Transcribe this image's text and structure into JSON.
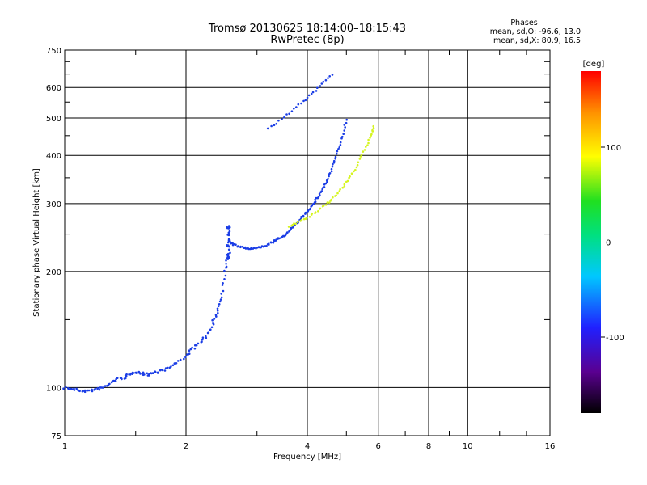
{
  "chart_data": {
    "type": "scatter",
    "title": "Tromsø 20130625 18:14:00–18:15:43",
    "subtitle": "RwPretec (8p)",
    "xlabel": "Frequency [MHz]",
    "ylabel": "Stationary phase Virtual Height [km]",
    "x_scale": "log",
    "y_scale": "log",
    "xlim": [
      1,
      16
    ],
    "ylim": [
      75,
      750
    ],
    "x_ticks": [
      1,
      2,
      4,
      6,
      8,
      10,
      16
    ],
    "y_ticks": [
      75,
      100,
      200,
      300,
      400,
      500,
      600,
      750
    ],
    "grid": true,
    "phase_info": {
      "title": "Phases",
      "line_o": "mean, sd,O: -96.6, 13.0",
      "line_x": "mean, sd,X:  80.9, 16.5"
    },
    "colorbar": {
      "label": "[deg]",
      "range": [
        -180,
        180
      ],
      "ticks": [
        "100",
        "0",
        "-100"
      ],
      "tick_values": [
        100,
        0,
        -100
      ]
    },
    "series": [
      {
        "mode": "O",
        "mean_phase": -96.6,
        "color": "#1a3de6",
        "trace_low": [
          [
            1.0,
            100
          ],
          [
            1.05,
            99
          ],
          [
            1.1,
            98
          ],
          [
            1.15,
            98
          ],
          [
            1.2,
            99
          ],
          [
            1.25,
            100
          ],
          [
            1.3,
            103
          ],
          [
            1.35,
            105
          ],
          [
            1.4,
            106
          ],
          [
            1.45,
            108
          ],
          [
            1.5,
            110
          ],
          [
            1.55,
            109
          ],
          [
            1.6,
            108
          ],
          [
            1.65,
            109
          ],
          [
            1.7,
            110
          ],
          [
            1.8,
            112
          ],
          [
            1.9,
            116
          ],
          [
            2.0,
            121
          ],
          [
            2.1,
            127
          ],
          [
            2.2,
            133
          ],
          [
            2.3,
            140
          ],
          [
            2.35,
            150
          ],
          [
            2.4,
            160
          ],
          [
            2.45,
            175
          ],
          [
            2.5,
            200
          ],
          [
            2.52,
            220
          ]
        ],
        "trace_f2": [
          [
            2.55,
            240
          ],
          [
            2.6,
            236
          ],
          [
            2.7,
            232
          ],
          [
            2.8,
            230
          ],
          [
            2.9,
            229
          ],
          [
            3.0,
            230
          ],
          [
            3.1,
            232
          ],
          [
            3.2,
            235
          ],
          [
            3.3,
            239
          ],
          [
            3.4,
            243
          ],
          [
            3.5,
            248
          ],
          [
            3.6,
            254
          ],
          [
            3.7,
            261
          ],
          [
            3.8,
            269
          ],
          [
            3.9,
            278
          ],
          [
            4.0,
            287
          ],
          [
            4.1,
            296
          ],
          [
            4.2,
            306
          ],
          [
            4.3,
            318
          ],
          [
            4.4,
            332
          ],
          [
            4.5,
            348
          ],
          [
            4.6,
            368
          ],
          [
            4.7,
            392
          ],
          [
            4.8,
            420
          ],
          [
            4.9,
            455
          ],
          [
            5.0,
            495
          ]
        ],
        "trace_high": [
          [
            3.2,
            470
          ],
          [
            3.4,
            490
          ],
          [
            3.6,
            515
          ],
          [
            3.8,
            540
          ],
          [
            4.0,
            565
          ],
          [
            4.2,
            590
          ],
          [
            4.4,
            620
          ],
          [
            4.6,
            650
          ]
        ]
      },
      {
        "mode": "X",
        "mean_phase": 80.9,
        "color": "#d6f520",
        "trace_f2x": [
          [
            3.6,
            262
          ],
          [
            3.8,
            268
          ],
          [
            4.0,
            276
          ],
          [
            4.2,
            285
          ],
          [
            4.4,
            296
          ],
          [
            4.6,
            308
          ],
          [
            4.8,
            322
          ],
          [
            5.0,
            340
          ],
          [
            5.2,
            362
          ],
          [
            5.4,
            390
          ],
          [
            5.6,
            420
          ],
          [
            5.75,
            450
          ],
          [
            5.85,
            478
          ]
        ]
      }
    ],
    "spike": {
      "x": 2.55,
      "y_range": [
        215,
        265
      ]
    }
  }
}
